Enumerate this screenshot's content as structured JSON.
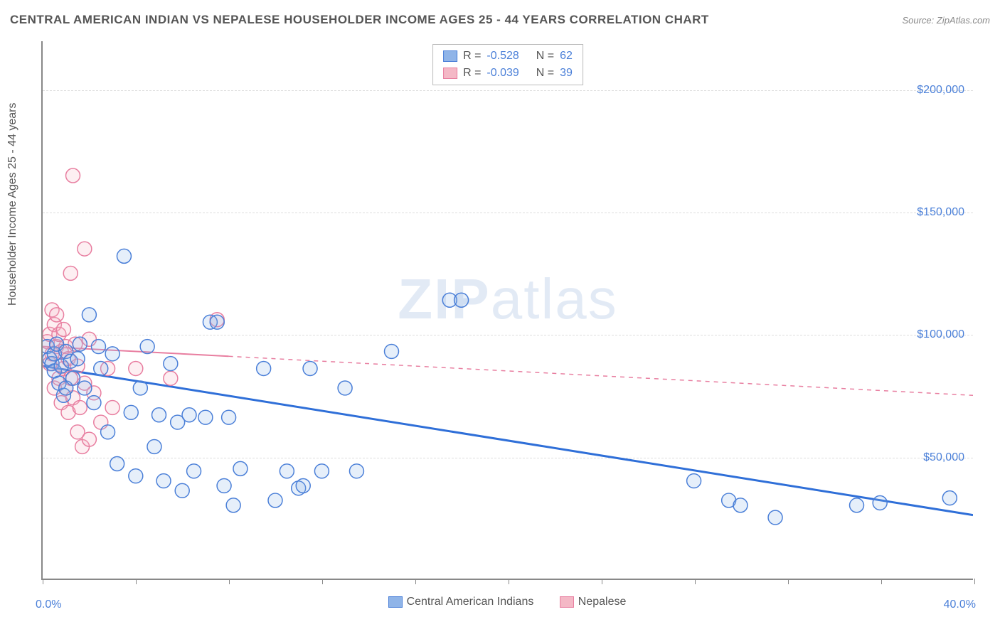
{
  "title": "CENTRAL AMERICAN INDIAN VS NEPALESE HOUSEHOLDER INCOME AGES 25 - 44 YEARS CORRELATION CHART",
  "source": "Source: ZipAtlas.com",
  "watermark_bold": "ZIP",
  "watermark_light": "atlas",
  "chart": {
    "type": "scatter",
    "xlim": [
      0.0,
      40.0
    ],
    "ylim": [
      0,
      220000
    ],
    "x_left_label": "0.0%",
    "x_right_label": "40.0%",
    "yticks": [
      50000,
      100000,
      150000,
      200000
    ],
    "ytick_labels": [
      "$50,000",
      "$100,000",
      "$150,000",
      "$200,000"
    ],
    "xtick_positions": [
      0,
      4,
      8,
      12,
      16,
      20,
      24,
      28,
      32,
      36,
      40
    ],
    "yaxis_title": "Householder Income Ages 25 - 44 years",
    "grid_color": "#dddddd",
    "axis_color": "#888888",
    "background_color": "#ffffff",
    "marker_radius": 10,
    "marker_stroke_width": 1.5,
    "marker_fill_opacity": 0.22,
    "series": {
      "blue": {
        "label": "Central American Indians",
        "fill": "#8fb4e8",
        "stroke": "#4a7fd8",
        "line_color": "#2f6fd8",
        "line_width": 3,
        "R": "-0.528",
        "N": "62",
        "regression": {
          "x1": 0,
          "y1": 87000,
          "x2": 40,
          "y2": 26000,
          "solid_until_x": 40
        },
        "points": [
          [
            0.2,
            95000
          ],
          [
            0.3,
            90000
          ],
          [
            0.4,
            88000
          ],
          [
            0.5,
            92000
          ],
          [
            0.5,
            85000
          ],
          [
            0.6,
            96000
          ],
          [
            0.7,
            80000
          ],
          [
            0.8,
            87000
          ],
          [
            0.9,
            75000
          ],
          [
            1.0,
            93000
          ],
          [
            1.0,
            78000
          ],
          [
            1.2,
            89000
          ],
          [
            1.3,
            82000
          ],
          [
            1.5,
            90000
          ],
          [
            1.6,
            96000
          ],
          [
            1.8,
            78000
          ],
          [
            2.0,
            108000
          ],
          [
            2.2,
            72000
          ],
          [
            2.4,
            95000
          ],
          [
            2.5,
            86000
          ],
          [
            2.8,
            60000
          ],
          [
            3.0,
            92000
          ],
          [
            3.2,
            47000
          ],
          [
            3.5,
            132000
          ],
          [
            3.8,
            68000
          ],
          [
            4.0,
            42000
          ],
          [
            4.2,
            78000
          ],
          [
            4.5,
            95000
          ],
          [
            4.8,
            54000
          ],
          [
            5.0,
            67000
          ],
          [
            5.2,
            40000
          ],
          [
            5.5,
            88000
          ],
          [
            5.8,
            64000
          ],
          [
            6.0,
            36000
          ],
          [
            6.3,
            67000
          ],
          [
            6.5,
            44000
          ],
          [
            7.0,
            66000
          ],
          [
            7.2,
            105000
          ],
          [
            7.5,
            105000
          ],
          [
            7.8,
            38000
          ],
          [
            8.0,
            66000
          ],
          [
            8.2,
            30000
          ],
          [
            8.5,
            45000
          ],
          [
            9.5,
            86000
          ],
          [
            10.0,
            32000
          ],
          [
            10.5,
            44000
          ],
          [
            11.0,
            37000
          ],
          [
            11.2,
            38000
          ],
          [
            11.5,
            86000
          ],
          [
            12.0,
            44000
          ],
          [
            13.0,
            78000
          ],
          [
            13.5,
            44000
          ],
          [
            15.0,
            93000
          ],
          [
            17.5,
            114000
          ],
          [
            18.0,
            114000
          ],
          [
            28.0,
            40000
          ],
          [
            29.5,
            32000
          ],
          [
            30.0,
            30000
          ],
          [
            31.5,
            25000
          ],
          [
            35.0,
            30000
          ],
          [
            36.0,
            31000
          ],
          [
            39.0,
            33000
          ]
        ]
      },
      "pink": {
        "label": "Nepalese",
        "fill": "#f4b8c6",
        "stroke": "#e87ea0",
        "line_color": "#e87ea0",
        "line_width": 2,
        "R": "-0.039",
        "N": "39",
        "regression": {
          "x1": 0,
          "y1": 95000,
          "x2": 40,
          "y2": 75000,
          "solid_until_x": 8
        },
        "points": [
          [
            0.2,
            97000
          ],
          [
            0.3,
            100000
          ],
          [
            0.3,
            88000
          ],
          [
            0.4,
            110000
          ],
          [
            0.4,
            92000
          ],
          [
            0.5,
            104000
          ],
          [
            0.5,
            78000
          ],
          [
            0.6,
            95000
          ],
          [
            0.6,
            108000
          ],
          [
            0.7,
            82000
          ],
          [
            0.7,
            100000
          ],
          [
            0.8,
            72000
          ],
          [
            0.8,
            93000
          ],
          [
            0.9,
            86000
          ],
          [
            0.9,
            102000
          ],
          [
            1.0,
            78000
          ],
          [
            1.0,
            95000
          ],
          [
            1.1,
            68000
          ],
          [
            1.1,
            90000
          ],
          [
            1.2,
            125000
          ],
          [
            1.2,
            82000
          ],
          [
            1.3,
            165000
          ],
          [
            1.3,
            74000
          ],
          [
            1.4,
            96000
          ],
          [
            1.5,
            60000
          ],
          [
            1.5,
            87000
          ],
          [
            1.6,
            70000
          ],
          [
            1.7,
            54000
          ],
          [
            1.8,
            135000
          ],
          [
            1.8,
            80000
          ],
          [
            2.0,
            57000
          ],
          [
            2.0,
            98000
          ],
          [
            2.2,
            76000
          ],
          [
            2.5,
            64000
          ],
          [
            2.8,
            86000
          ],
          [
            3.0,
            70000
          ],
          [
            4.0,
            86000
          ],
          [
            5.5,
            82000
          ],
          [
            7.5,
            106000
          ]
        ]
      }
    }
  }
}
